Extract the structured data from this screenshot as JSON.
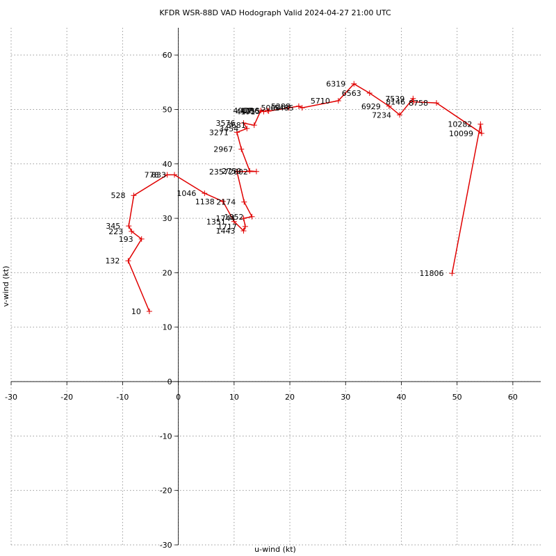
{
  "chart_data": {
    "type": "hodograph",
    "title": "KFDR WSR-88D VAD Hodograph Valid 2024-04-27 21:00 UTC",
    "x_label": "u-wind (kt)",
    "y_label": "v-wind (kt)",
    "xlim": [
      -30,
      65
    ],
    "ylim": [
      -30,
      65
    ],
    "xticks": [
      -30,
      -20,
      -10,
      0,
      10,
      20,
      30,
      40,
      50,
      60
    ],
    "yticks": [
      -30,
      -20,
      -10,
      0,
      10,
      20,
      30,
      40,
      50,
      60
    ],
    "grid": true,
    "color": "#e00000",
    "heights": [
      10,
      132,
      193,
      223,
      345,
      528,
      778,
      833,
      1046,
      1138,
      1351,
      1443,
      1717,
      1744,
      1852,
      2174,
      2357,
      2602,
      2750,
      2967,
      3271,
      3454,
      3576,
      3681,
      4017,
      4191,
      4296,
      4755,
      5060,
      5288,
      5485,
      5710,
      6319,
      6563,
      6929,
      7234,
      7539,
      8146,
      8758,
      10099,
      10282,
      11806
    ],
    "u": [
      -5.2,
      -9.0,
      -6.6,
      -8.4,
      -8.9,
      -8.0,
      -2.0,
      -0.7,
      4.7,
      8.0,
      10.0,
      11.7,
      12.0,
      11.7,
      13.2,
      11.8,
      10.5,
      14.0,
      12.8,
      11.3,
      10.5,
      12.3,
      11.7,
      13.6,
      14.8,
      15.3,
      16.0,
      16.2,
      19.8,
      21.6,
      22.2,
      28.7,
      31.5,
      34.3,
      37.8,
      39.7,
      42.1,
      42.2,
      46.3,
      54.4,
      54.2,
      49.1
    ],
    "v": [
      12.9,
      22.2,
      26.2,
      27.6,
      28.6,
      34.2,
      38.0,
      38.0,
      34.6,
      33.1,
      29.4,
      27.7,
      28.5,
      30.0,
      30.3,
      33.0,
      38.6,
      38.6,
      38.7,
      42.7,
      45.8,
      46.5,
      47.5,
      47.1,
      49.8,
      49.6,
      49.8,
      49.7,
      50.3,
      50.6,
      50.3,
      51.6,
      54.7,
      53.0,
      50.6,
      49.0,
      52.0,
      51.4,
      51.2,
      45.6,
      47.3,
      19.9
    ]
  }
}
